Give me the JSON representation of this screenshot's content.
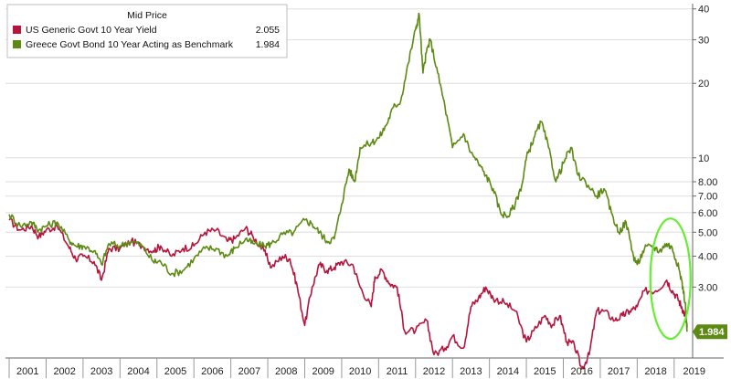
{
  "chart_data": {
    "type": "line",
    "yscale": "log",
    "ylim": [
      1.55,
      42
    ],
    "xlim": [
      2000.9,
      2019.5
    ],
    "legend": {
      "title": "Mid Price",
      "placement": "top-left",
      "entries": [
        {
          "name": "US Generic Govt 10 Year Yield",
          "value": "2.055",
          "color": "#b5143c"
        },
        {
          "name": "Greece Govt Bond 10 Year Acting as Benchmark",
          "value": "1.984",
          "color": "#5d8a12"
        }
      ]
    },
    "last_value_label": "1.984",
    "x_tick_labels": [
      "2001",
      "2002",
      "2003",
      "2004",
      "2005",
      "2006",
      "2007",
      "2008",
      "2009",
      "2010",
      "2011",
      "2012",
      "2013",
      "2014",
      "2015",
      "2016",
      "2017",
      "2018",
      "2019"
    ],
    "y_tick_labels": [
      {
        "value": 40,
        "label": "40"
      },
      {
        "value": 30,
        "label": "30"
      },
      {
        "value": 20,
        "label": "20"
      },
      {
        "value": 10,
        "label": "10"
      },
      {
        "value": 8,
        "label": "8.00"
      },
      {
        "value": 7,
        "label": "7.00"
      },
      {
        "value": 6,
        "label": "6.00"
      },
      {
        "value": 5,
        "label": "5.00"
      },
      {
        "value": 4,
        "label": "4.00"
      },
      {
        "value": 3,
        "label": "3.00"
      }
    ],
    "highlight": {
      "shape": "ellipse",
      "color": "#66ee33",
      "x_center": 2018.9,
      "y_range": [
        1.95,
        5.4
      ]
    },
    "series": [
      {
        "name": "US Generic Govt 10 Year Yield",
        "color": "#b5143c",
        "points": [
          [
            2001.0,
            5.6
          ],
          [
            2001.3,
            5.1
          ],
          [
            2001.6,
            5.3
          ],
          [
            2001.8,
            4.8
          ],
          [
            2002.0,
            5.1
          ],
          [
            2002.3,
            5.3
          ],
          [
            2002.6,
            4.4
          ],
          [
            2002.8,
            3.9
          ],
          [
            2003.0,
            4.0
          ],
          [
            2003.3,
            3.8
          ],
          [
            2003.5,
            3.2
          ],
          [
            2003.7,
            4.3
          ],
          [
            2004.0,
            4.3
          ],
          [
            2004.3,
            4.6
          ],
          [
            2004.6,
            4.4
          ],
          [
            2004.9,
            4.2
          ],
          [
            2005.1,
            4.4
          ],
          [
            2005.4,
            4.0
          ],
          [
            2005.7,
            4.3
          ],
          [
            2006.0,
            4.4
          ],
          [
            2006.3,
            5.0
          ],
          [
            2006.6,
            5.1
          ],
          [
            2006.9,
            4.6
          ],
          [
            2007.1,
            4.7
          ],
          [
            2007.4,
            5.2
          ],
          [
            2007.6,
            4.8
          ],
          [
            2007.9,
            4.2
          ],
          [
            2008.1,
            3.6
          ],
          [
            2008.4,
            4.0
          ],
          [
            2008.6,
            3.9
          ],
          [
            2008.8,
            3.0
          ],
          [
            2009.0,
            2.1
          ],
          [
            2009.2,
            3.0
          ],
          [
            2009.4,
            3.7
          ],
          [
            2009.6,
            3.5
          ],
          [
            2009.8,
            3.6
          ],
          [
            2010.0,
            3.8
          ],
          [
            2010.3,
            3.7
          ],
          [
            2010.5,
            3.0
          ],
          [
            2010.8,
            2.5
          ],
          [
            2010.9,
            3.3
          ],
          [
            2011.1,
            3.5
          ],
          [
            2011.3,
            3.1
          ],
          [
            2011.5,
            3.0
          ],
          [
            2011.7,
            2.0
          ],
          [
            2012.0,
            2.0
          ],
          [
            2012.3,
            2.2
          ],
          [
            2012.5,
            1.6
          ],
          [
            2012.8,
            1.7
          ],
          [
            2013.0,
            1.9
          ],
          [
            2013.3,
            1.7
          ],
          [
            2013.5,
            2.5
          ],
          [
            2013.7,
            2.7
          ],
          [
            2013.9,
            3.0
          ],
          [
            2014.1,
            2.7
          ],
          [
            2014.4,
            2.6
          ],
          [
            2014.7,
            2.4
          ],
          [
            2015.0,
            1.8
          ],
          [
            2015.2,
            2.0
          ],
          [
            2015.5,
            2.3
          ],
          [
            2015.7,
            2.1
          ],
          [
            2015.9,
            2.3
          ],
          [
            2016.1,
            1.8
          ],
          [
            2016.3,
            1.75
          ],
          [
            2016.5,
            1.4
          ],
          [
            2016.7,
            1.6
          ],
          [
            2016.9,
            2.4
          ],
          [
            2017.1,
            2.4
          ],
          [
            2017.4,
            2.2
          ],
          [
            2017.6,
            2.3
          ],
          [
            2017.8,
            2.4
          ],
          [
            2018.0,
            2.5
          ],
          [
            2018.2,
            2.9
          ],
          [
            2018.5,
            2.9
          ],
          [
            2018.8,
            3.2
          ],
          [
            2018.95,
            2.9
          ],
          [
            2019.1,
            2.7
          ],
          [
            2019.2,
            2.5
          ],
          [
            2019.3,
            2.3
          ],
          [
            2019.35,
            2.06
          ]
        ]
      },
      {
        "name": "Greece Govt Bond 10 Year Acting as Benchmark",
        "color": "#5d8a12",
        "points": [
          [
            2001.0,
            5.9
          ],
          [
            2001.3,
            5.3
          ],
          [
            2001.6,
            5.5
          ],
          [
            2001.8,
            5.1
          ],
          [
            2002.0,
            5.3
          ],
          [
            2002.3,
            5.5
          ],
          [
            2002.6,
            4.7
          ],
          [
            2002.8,
            4.4
          ],
          [
            2003.0,
            4.4
          ],
          [
            2003.3,
            4.2
          ],
          [
            2003.5,
            3.7
          ],
          [
            2003.7,
            4.5
          ],
          [
            2004.0,
            4.4
          ],
          [
            2004.3,
            4.6
          ],
          [
            2004.6,
            4.4
          ],
          [
            2004.9,
            3.8
          ],
          [
            2005.1,
            3.8
          ],
          [
            2005.4,
            3.4
          ],
          [
            2005.7,
            3.5
          ],
          [
            2006.0,
            3.9
          ],
          [
            2006.3,
            4.3
          ],
          [
            2006.6,
            4.3
          ],
          [
            2006.9,
            4.0
          ],
          [
            2007.1,
            4.3
          ],
          [
            2007.4,
            4.7
          ],
          [
            2007.6,
            4.5
          ],
          [
            2007.9,
            4.4
          ],
          [
            2008.1,
            4.5
          ],
          [
            2008.4,
            4.9
          ],
          [
            2008.7,
            5.0
          ],
          [
            2009.0,
            5.6
          ],
          [
            2009.2,
            5.4
          ],
          [
            2009.4,
            5.0
          ],
          [
            2009.6,
            4.6
          ],
          [
            2009.8,
            4.7
          ],
          [
            2010.0,
            6.5
          ],
          [
            2010.2,
            9.0
          ],
          [
            2010.35,
            8.0
          ],
          [
            2010.5,
            11.0
          ],
          [
            2010.8,
            11.5
          ],
          [
            2011.0,
            12.0
          ],
          [
            2011.2,
            13.5
          ],
          [
            2011.4,
            16.0
          ],
          [
            2011.6,
            17.0
          ],
          [
            2011.8,
            24.0
          ],
          [
            2012.0,
            33.0
          ],
          [
            2012.1,
            38.0
          ],
          [
            2012.2,
            22.0
          ],
          [
            2012.3,
            27.0
          ],
          [
            2012.4,
            30.0
          ],
          [
            2012.6,
            22.0
          ],
          [
            2012.8,
            16.0
          ],
          [
            2013.0,
            11.0
          ],
          [
            2013.3,
            12.5
          ],
          [
            2013.5,
            10.5
          ],
          [
            2013.7,
            9.5
          ],
          [
            2013.9,
            8.5
          ],
          [
            2014.1,
            7.5
          ],
          [
            2014.3,
            6.0
          ],
          [
            2014.5,
            5.8
          ],
          [
            2014.7,
            6.5
          ],
          [
            2014.9,
            8.0
          ],
          [
            2015.0,
            10.0
          ],
          [
            2015.2,
            12.0
          ],
          [
            2015.4,
            14.0
          ],
          [
            2015.6,
            11.0
          ],
          [
            2015.8,
            8.0
          ],
          [
            2016.0,
            9.5
          ],
          [
            2016.2,
            11.0
          ],
          [
            2016.4,
            8.5
          ],
          [
            2016.6,
            8.0
          ],
          [
            2016.9,
            7.0
          ],
          [
            2017.1,
            7.5
          ],
          [
            2017.3,
            6.0
          ],
          [
            2017.5,
            5.0
          ],
          [
            2017.7,
            5.5
          ],
          [
            2017.9,
            4.0
          ],
          [
            2018.0,
            3.7
          ],
          [
            2018.2,
            4.3
          ],
          [
            2018.4,
            4.4
          ],
          [
            2018.6,
            4.2
          ],
          [
            2018.8,
            4.5
          ],
          [
            2018.95,
            4.3
          ],
          [
            2019.1,
            3.7
          ],
          [
            2019.2,
            3.2
          ],
          [
            2019.3,
            2.6
          ],
          [
            2019.35,
            1.98
          ]
        ]
      }
    ]
  }
}
